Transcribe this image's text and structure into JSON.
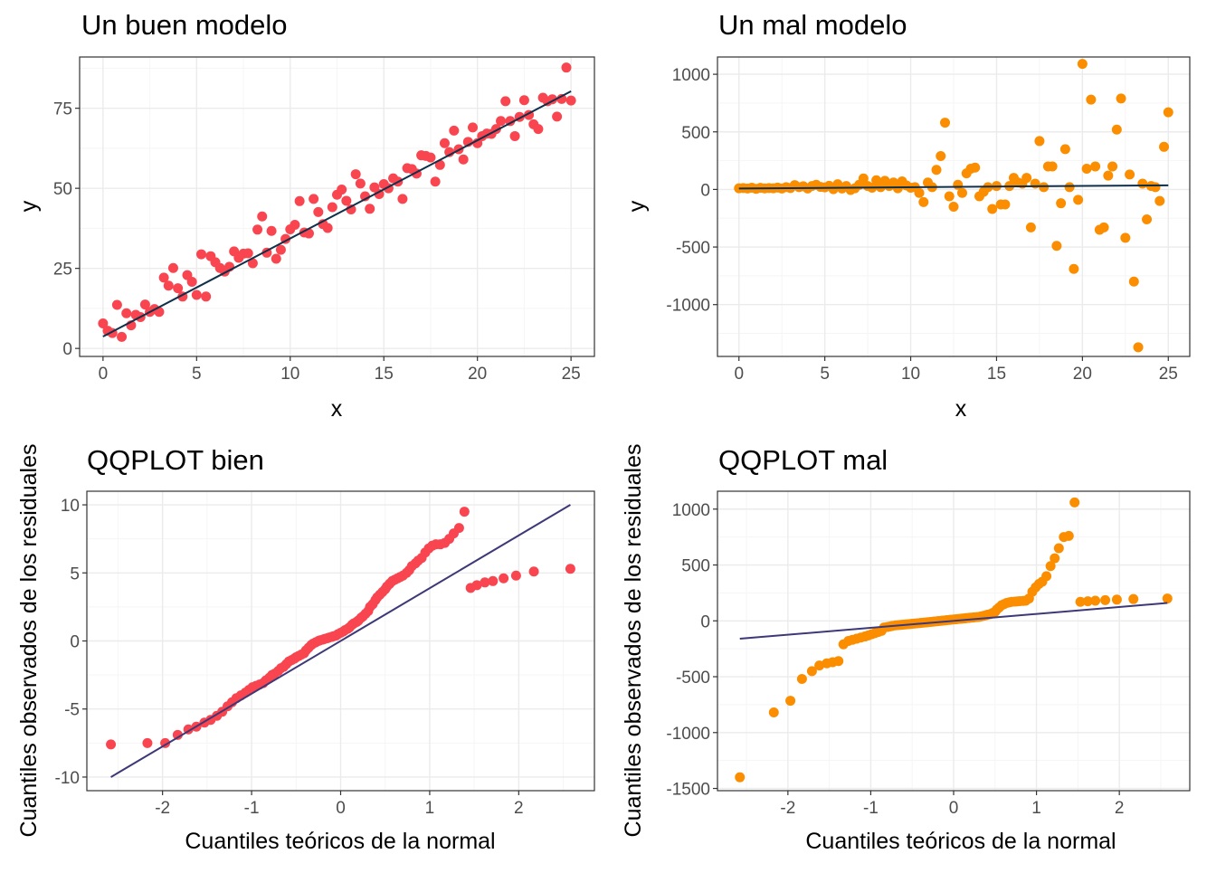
{
  "colors": {
    "good_points": "#f8454f",
    "bad_points": "#fb8e00",
    "reg_line": "#0f2f4a",
    "qq_line": "#3d3877",
    "grid_major": "#ebebeb",
    "grid_minor": "#f5f5f5",
    "panel_border": "#333333"
  },
  "chart_data": [
    {
      "type": "scatter",
      "title": "Un buen modelo",
      "xlabel": "x",
      "ylabel": "y",
      "xlim": [
        -1.25,
        26.25
      ],
      "ylim": [
        -2.5,
        91
      ],
      "xticks": [
        0,
        5,
        10,
        15,
        20,
        25
      ],
      "yticks": [
        0,
        25,
        50,
        75
      ],
      "xtick_labels": [
        "0",
        "5",
        "10",
        "15",
        "20",
        "25"
      ],
      "ytick_labels": [
        "0",
        "25",
        "50",
        "75"
      ],
      "grid": true,
      "line": {
        "x": [
          0,
          25
        ],
        "y": [
          3.7,
          80.3
        ]
      },
      "points": {
        "x": [
          0.0,
          0.25,
          0.5,
          0.75,
          1.0,
          1.25,
          1.5,
          1.75,
          2.0,
          2.25,
          2.5,
          2.75,
          3.0,
          3.25,
          3.5,
          3.75,
          4.0,
          4.25,
          4.5,
          4.75,
          5.0,
          5.25,
          5.5,
          5.75,
          6.0,
          6.25,
          6.5,
          6.75,
          7.0,
          7.25,
          7.5,
          7.75,
          8.0,
          8.25,
          8.5,
          8.75,
          9.0,
          9.25,
          9.5,
          9.75,
          10.0,
          10.25,
          10.5,
          10.75,
          11.0,
          11.25,
          11.5,
          11.75,
          12.0,
          12.25,
          12.5,
          12.75,
          13.0,
          13.25,
          13.5,
          13.75,
          14.0,
          14.25,
          14.5,
          14.75,
          15.0,
          15.25,
          15.5,
          15.75,
          16.0,
          16.25,
          16.5,
          16.75,
          17.0,
          17.25,
          17.5,
          17.75,
          18.0,
          18.25,
          18.5,
          18.75,
          19.0,
          19.25,
          19.5,
          19.75,
          20.0,
          20.25,
          20.5,
          20.75,
          21.0,
          21.25,
          21.5,
          21.75,
          22.0,
          22.25,
          22.5,
          22.75,
          23.0,
          23.25,
          23.5,
          23.75,
          24.0,
          24.25,
          24.5,
          24.75,
          25.0
        ],
        "y": [
          7.8,
          5.5,
          4.8,
          13.6,
          3.6,
          11.0,
          7.2,
          10.5,
          9.8,
          13.7,
          11.4,
          12.3,
          11.4,
          22.1,
          19.6,
          25.1,
          18.8,
          16.2,
          22.9,
          20.8,
          16.7,
          29.4,
          16.2,
          28.8,
          26.9,
          25.1,
          24.0,
          25.5,
          30.3,
          28.3,
          29.6,
          29.7,
          26.6,
          37.1,
          41.2,
          29.9,
          36.7,
          28.0,
          30.8,
          34.2,
          37.2,
          38.6,
          46.0,
          36.2,
          35.9,
          46.7,
          42.6,
          38.8,
          37.6,
          44.1,
          48.0,
          49.6,
          46.1,
          43.4,
          54.4,
          51.5,
          47.5,
          43.6,
          50.3,
          48.2,
          51.3,
          50.0,
          53.1,
          52.1,
          46.7,
          56.3,
          56.0,
          54.6,
          60.3,
          60.1,
          59.6,
          52.1,
          57.3,
          64.1,
          61.3,
          68.0,
          62.2,
          59.0,
          64.5,
          69.0,
          64.1,
          66.3,
          67.1,
          67.0,
          68.5,
          71.0,
          77.2,
          71.0,
          66.3,
          72.3,
          77.5,
          72.9,
          70.0,
          68.5,
          78.3,
          77.2,
          77.8,
          72.4,
          77.9,
          87.7,
          77.4
        ]
      }
    },
    {
      "type": "scatter",
      "title": "Un mal modelo",
      "xlabel": "x",
      "ylabel": "y",
      "xlim": [
        -1.25,
        26.25
      ],
      "ylim": [
        -1450,
        1150
      ],
      "xticks": [
        0,
        5,
        10,
        15,
        20,
        25
      ],
      "yticks": [
        -1000,
        -500,
        0,
        500,
        1000
      ],
      "xtick_labels": [
        "0",
        "5",
        "10",
        "15",
        "20",
        "25"
      ],
      "ytick_labels": [
        "-1000",
        "-500",
        "0",
        "500",
        "1000"
      ],
      "grid": true,
      "line": {
        "x": [
          0,
          25
        ],
        "y": [
          8,
          36
        ]
      },
      "points": {
        "x": [
          0.0,
          0.25,
          0.5,
          0.75,
          1.0,
          1.25,
          1.5,
          1.75,
          2.0,
          2.25,
          2.5,
          2.75,
          3.0,
          3.25,
          3.5,
          3.75,
          4.0,
          4.25,
          4.5,
          4.75,
          5.0,
          5.25,
          5.5,
          5.75,
          6.0,
          6.25,
          6.5,
          6.75,
          7.0,
          7.25,
          7.5,
          7.75,
          8.0,
          8.25,
          8.5,
          8.75,
          9.0,
          9.25,
          9.5,
          9.75,
          10.0,
          10.25,
          10.5,
          10.75,
          11.0,
          11.25,
          11.5,
          11.75,
          12.0,
          12.25,
          12.5,
          12.75,
          13.0,
          13.25,
          13.5,
          13.75,
          14.0,
          14.25,
          14.5,
          14.75,
          15.0,
          15.25,
          15.5,
          15.75,
          16.0,
          16.25,
          16.5,
          16.75,
          17.0,
          17.25,
          17.5,
          17.75,
          18.0,
          18.25,
          18.5,
          18.75,
          19.0,
          19.25,
          19.5,
          19.75,
          20.0,
          20.25,
          20.5,
          20.75,
          21.0,
          21.25,
          21.5,
          21.75,
          22.0,
          22.25,
          22.5,
          22.75,
          23.0,
          23.25,
          23.5,
          23.75,
          24.0,
          24.25,
          24.5,
          24.75,
          25.0
        ],
        "y": [
          10,
          12,
          8,
          15,
          5,
          14,
          9,
          12,
          10,
          16,
          8,
          20,
          12,
          38,
          20,
          28,
          8,
          30,
          40,
          22,
          18,
          32,
          2,
          45,
          8,
          30,
          -5,
          10,
          40,
          95,
          30,
          15,
          80,
          20,
          75,
          30,
          60,
          10,
          70,
          35,
          15,
          20,
          -30,
          -110,
          60,
          20,
          170,
          290,
          580,
          -60,
          -150,
          40,
          -30,
          140,
          180,
          190,
          -60,
          -20,
          20,
          -170,
          30,
          -130,
          -130,
          30,
          100,
          60,
          50,
          100,
          -330,
          50,
          420,
          20,
          200,
          200,
          -490,
          -120,
          350,
          20,
          -690,
          -90,
          1090,
          180,
          780,
          200,
          -350,
          -330,
          120,
          200,
          520,
          790,
          -420,
          130,
          -800,
          -1370,
          50,
          -260,
          30,
          20,
          -100,
          370,
          670
        ]
      }
    },
    {
      "type": "scatter",
      "title": "QQPLOT bien",
      "xlabel": "Cuantiles teóricos de la normal",
      "ylabel": "Cuantiles observados de los residuales",
      "xlim": [
        -2.85,
        2.85
      ],
      "ylim": [
        -11,
        11
      ],
      "xticks": [
        -2,
        -1,
        0,
        1,
        2
      ],
      "yticks": [
        -10,
        -5,
        0,
        5,
        10
      ],
      "xtick_labels": [
        "-2",
        "-1",
        "0",
        "1",
        "2"
      ],
      "ytick_labels": [
        "-10",
        "-5",
        "0",
        "5",
        "10"
      ],
      "grid": true,
      "line": {
        "x": [
          -2.58,
          2.58
        ],
        "y": [
          -10.0,
          10.0
        ]
      },
      "points": {
        "theoretical": [
          -2.58,
          -2.17,
          -1.97,
          -1.83,
          -1.71,
          -1.62,
          -1.53,
          -1.46,
          -1.39,
          -1.33,
          -1.27,
          -1.22,
          -1.17,
          -1.12,
          -1.07,
          -1.03,
          -0.99,
          -0.95,
          -0.91,
          -0.87,
          -0.84,
          -0.8,
          -0.77,
          -0.74,
          -0.7,
          -0.67,
          -0.64,
          -0.61,
          -0.58,
          -0.55,
          -0.52,
          -0.5,
          -0.47,
          -0.44,
          -0.41,
          -0.39,
          -0.36,
          -0.33,
          -0.31,
          -0.28,
          -0.25,
          -0.23,
          -0.2,
          -0.18,
          -0.15,
          -0.13,
          -0.1,
          -0.08,
          -0.05,
          -0.03,
          0.0,
          0.03,
          0.05,
          0.08,
          0.1,
          0.13,
          0.15,
          0.18,
          0.2,
          0.23,
          0.25,
          0.28,
          0.31,
          0.33,
          0.36,
          0.39,
          0.41,
          0.44,
          0.47,
          0.5,
          0.52,
          0.55,
          0.58,
          0.61,
          0.64,
          0.67,
          0.7,
          0.74,
          0.77,
          0.8,
          0.84,
          0.87,
          0.91,
          0.95,
          0.99,
          1.03,
          1.07,
          1.12,
          1.17,
          1.22,
          1.27,
          1.33,
          1.39,
          1.46,
          1.53,
          1.62,
          1.71,
          1.83,
          1.97,
          2.17,
          2.58
        ],
        "sample": [
          -7.6,
          -7.5,
          -7.5,
          -6.9,
          -6.5,
          -6.3,
          -6.0,
          -5.8,
          -5.5,
          -5.2,
          -4.8,
          -4.5,
          -4.2,
          -4.0,
          -3.8,
          -3.6,
          -3.4,
          -3.3,
          -3.2,
          -3.1,
          -2.9,
          -2.7,
          -2.5,
          -2.4,
          -2.2,
          -2.0,
          -1.9,
          -1.7,
          -1.5,
          -1.4,
          -1.3,
          -1.2,
          -1.1,
          -1.0,
          -0.9,
          -0.7,
          -0.5,
          -0.3,
          -0.2,
          -0.1,
          0.0,
          0.05,
          0.1,
          0.15,
          0.2,
          0.25,
          0.3,
          0.35,
          0.4,
          0.5,
          0.6,
          0.7,
          0.8,
          0.9,
          1.0,
          1.2,
          1.3,
          1.4,
          1.5,
          1.7,
          1.8,
          2.0,
          2.2,
          2.5,
          2.7,
          3.0,
          3.2,
          3.4,
          3.6,
          3.8,
          4.0,
          4.2,
          4.4,
          4.5,
          4.6,
          4.7,
          4.8,
          5.0,
          5.2,
          5.5,
          5.7,
          5.9,
          6.1,
          6.5,
          6.8,
          7.0,
          7.1,
          7.1,
          7.2,
          7.5,
          7.9,
          8.3,
          9.5,
          3.9,
          4.1,
          4.3,
          4.4,
          4.6,
          4.8,
          5.1,
          5.3
        ]
      }
    },
    {
      "type": "scatter",
      "title": "QQPLOT mal",
      "xlabel": "Cuantiles teóricos de la normal",
      "ylabel": "Cuantiles observados de los residuales",
      "xlim": [
        -2.85,
        2.85
      ],
      "ylim": [
        -1520,
        1160
      ],
      "xticks": [
        -2,
        -1,
        0,
        1,
        2
      ],
      "yticks": [
        -1500,
        -1000,
        -500,
        0,
        500,
        1000
      ],
      "xtick_labels": [
        "-2",
        "-1",
        "0",
        "1",
        "2"
      ],
      "ytick_labels": [
        "-1500",
        "-1000",
        "-500",
        "0",
        "500",
        "1000"
      ],
      "grid": true,
      "line": {
        "x": [
          -2.58,
          2.58
        ],
        "y": [
          -160,
          160
        ]
      },
      "points": {
        "theoretical": [
          -2.58,
          -2.17,
          -1.97,
          -1.83,
          -1.71,
          -1.62,
          -1.53,
          -1.46,
          -1.39,
          -1.33,
          -1.27,
          -1.22,
          -1.17,
          -1.12,
          -1.07,
          -1.03,
          -0.99,
          -0.95,
          -0.91,
          -0.87,
          -0.84,
          -0.8,
          -0.77,
          -0.74,
          -0.7,
          -0.67,
          -0.64,
          -0.61,
          -0.58,
          -0.55,
          -0.52,
          -0.5,
          -0.47,
          -0.44,
          -0.41,
          -0.39,
          -0.36,
          -0.33,
          -0.31,
          -0.28,
          -0.25,
          -0.23,
          -0.2,
          -0.18,
          -0.15,
          -0.13,
          -0.1,
          -0.08,
          -0.05,
          -0.03,
          0.0,
          0.03,
          0.05,
          0.08,
          0.1,
          0.13,
          0.15,
          0.18,
          0.2,
          0.23,
          0.25,
          0.28,
          0.31,
          0.33,
          0.36,
          0.39,
          0.41,
          0.44,
          0.47,
          0.5,
          0.52,
          0.55,
          0.58,
          0.61,
          0.64,
          0.67,
          0.7,
          0.74,
          0.77,
          0.8,
          0.84,
          0.87,
          0.91,
          0.95,
          0.99,
          1.03,
          1.07,
          1.12,
          1.17,
          1.22,
          1.27,
          1.33,
          1.39,
          1.46,
          1.53,
          1.62,
          1.71,
          1.83,
          1.97,
          2.17,
          2.58
        ],
        "sample": [
          -1400,
          -820,
          -715,
          -520,
          -450,
          -400,
          -380,
          -370,
          -360,
          -210,
          -180,
          -170,
          -160,
          -150,
          -140,
          -130,
          -120,
          -110,
          -100,
          -90,
          -60,
          -55,
          -50,
          -45,
          -40,
          -38,
          -36,
          -34,
          -32,
          -30,
          -28,
          -26,
          -24,
          -22,
          -20,
          -18,
          -16,
          -14,
          -12,
          -10,
          -8,
          -6,
          -4,
          -2,
          0,
          2,
          4,
          6,
          8,
          10,
          12,
          14,
          16,
          18,
          20,
          22,
          24,
          26,
          28,
          30,
          32,
          34,
          36,
          40,
          45,
          50,
          55,
          60,
          70,
          80,
          100,
          120,
          140,
          150,
          160,
          165,
          170,
          172,
          174,
          176,
          178,
          180,
          200,
          260,
          300,
          330,
          350,
          400,
          490,
          560,
          650,
          750,
          760,
          1060,
          170,
          175,
          180,
          185,
          190,
          195,
          200
        ]
      }
    }
  ]
}
